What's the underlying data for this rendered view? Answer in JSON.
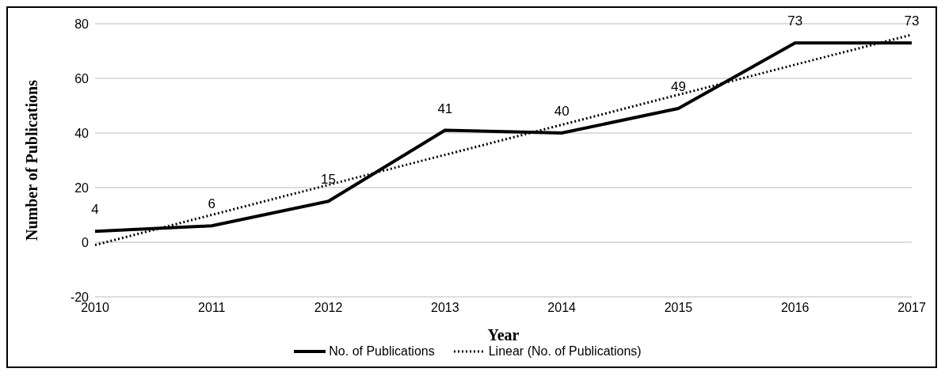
{
  "chart_data": {
    "type": "line",
    "xlabel": "Year",
    "ylabel": "Number of Publications",
    "categories": [
      "2010",
      "2011",
      "2012",
      "2013",
      "2014",
      "2015",
      "2016",
      "2017"
    ],
    "series": [
      {
        "name": "No. of Publications",
        "color": "#000000",
        "values": [
          4,
          6,
          15,
          41,
          40,
          49,
          73,
          73
        ],
        "value_labels": [
          "4",
          "6",
          "15",
          "41",
          "40",
          "49",
          "73",
          "73"
        ],
        "line_style": "solid"
      },
      {
        "name": "Linear (No. of Publications)",
        "color": "#000000",
        "values": [
          -1,
          10,
          21,
          32,
          43,
          54,
          65,
          76
        ],
        "line_style": "dotted"
      }
    ],
    "ylim": [
      -20,
      80
    ],
    "yticks": [
      -20,
      0,
      20,
      40,
      60,
      80
    ],
    "grid": "y",
    "legend": "bottom",
    "marker": "none"
  }
}
